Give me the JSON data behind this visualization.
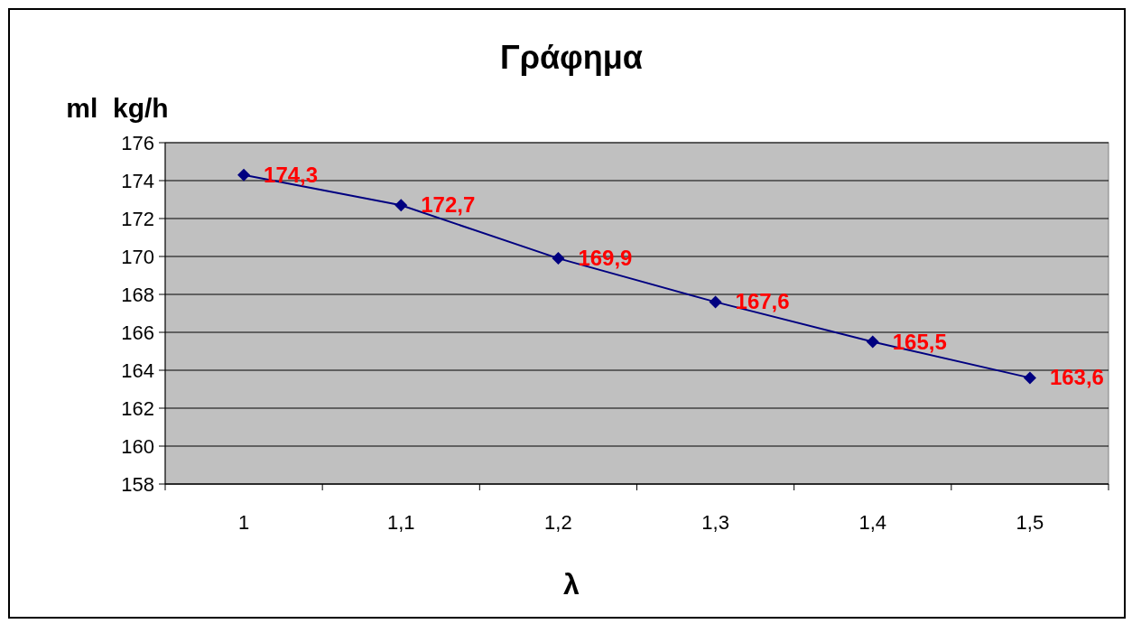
{
  "chart_data": {
    "type": "line",
    "title": "Γράφημα",
    "xlabel": "λ",
    "ylabel": "ml  kg/h",
    "categories": [
      "1",
      "1,1",
      "1,2",
      "1,3",
      "1,4",
      "1,5"
    ],
    "series": [
      {
        "color": "#000080",
        "values": [
          174.3,
          172.7,
          169.9,
          167.6,
          165.5,
          163.6
        ],
        "value_labels": [
          "174,3",
          "172,7",
          "169,9",
          "167,6",
          "165,5",
          "163,6"
        ]
      }
    ],
    "ylim": [
      158,
      176
    ],
    "yticks": [
      158,
      160,
      162,
      164,
      166,
      168,
      170,
      172,
      174,
      176
    ],
    "grid": "y",
    "marker": "diamond",
    "line_style": "solid"
  }
}
